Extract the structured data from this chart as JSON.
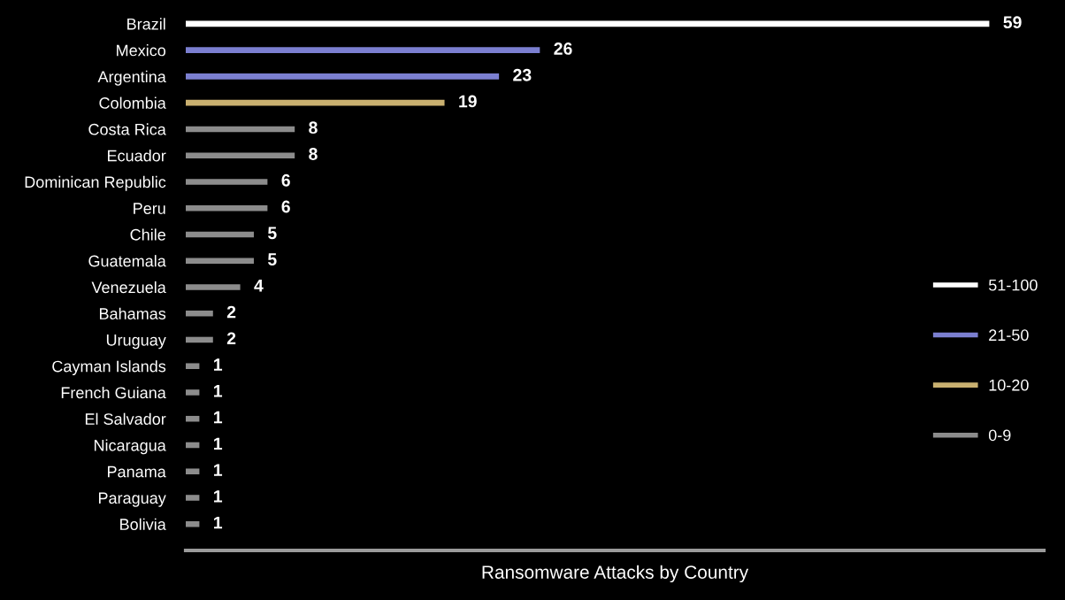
{
  "chart_data": {
    "type": "bar",
    "orientation": "horizontal",
    "xlabel": "Ransomware Attacks by Country",
    "categories": [
      "Brazil",
      "Mexico",
      "Argentina",
      "Colombia",
      "Costa Rica",
      "Ecuador",
      "Dominican Republic",
      "Peru",
      "Chile",
      "Guatemala",
      "Venezuela",
      "Bahamas",
      "Uruguay",
      "Cayman Islands",
      "French Guiana",
      "El Salvador",
      "Nicaragua",
      "Panama",
      "Paraguay",
      "Bolivia"
    ],
    "series": [
      {
        "name": "51-100",
        "color": "#ffffff",
        "values": [
          59,
          null,
          null,
          null,
          null,
          null,
          null,
          null,
          null,
          null,
          null,
          null,
          null,
          null,
          null,
          null,
          null,
          null,
          null,
          null
        ]
      },
      {
        "name": "21-50",
        "color": "#7b7fd0",
        "values": [
          null,
          26,
          23,
          null,
          null,
          null,
          null,
          null,
          null,
          null,
          null,
          null,
          null,
          null,
          null,
          null,
          null,
          null,
          null,
          null
        ]
      },
      {
        "name": "10-20",
        "color": "#c9b070",
        "values": [
          null,
          null,
          null,
          19,
          null,
          null,
          null,
          null,
          null,
          null,
          null,
          null,
          null,
          null,
          null,
          null,
          null,
          null,
          null,
          null
        ]
      },
      {
        "name": "0-9",
        "color": "#8c8c8c",
        "values": [
          null,
          null,
          null,
          null,
          8,
          8,
          6,
          6,
          5,
          5,
          4,
          2,
          2,
          1,
          1,
          1,
          1,
          1,
          1,
          1
        ]
      }
    ],
    "xlim": [
      0,
      63
    ],
    "data_labels": true,
    "legend": "right",
    "grid": false,
    "tick_labels": "y"
  }
}
